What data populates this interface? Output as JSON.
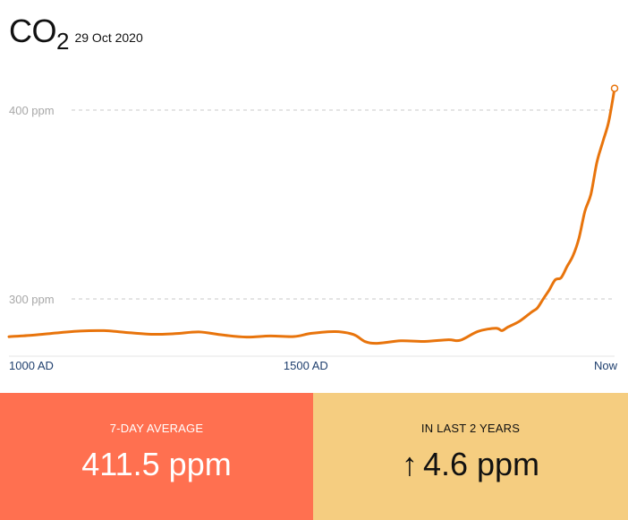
{
  "header": {
    "title_main": "CO",
    "title_sub": "2",
    "date": "29 Oct 2020"
  },
  "colors": {
    "line": "#e8740c",
    "tile_left_bg": "#ff7050",
    "tile_right_bg": "#f5cd80",
    "axis_text": "#1f3f6e",
    "gridline": "#c8c8c8",
    "y_tick_text": "#a8a8a8"
  },
  "chart_data": {
    "type": "line",
    "title": "",
    "xlabel": "",
    "ylabel": "",
    "x_tick_labels": [
      "1000 AD",
      "1500 AD",
      "Now"
    ],
    "x_ticks": [
      1000,
      1500,
      2020
    ],
    "y_tick_labels": [
      "400 ppm",
      "300 ppm"
    ],
    "y_ticks": [
      400,
      300
    ],
    "xlim": [
      1000,
      2020
    ],
    "ylim": [
      270,
      425
    ],
    "grid": "horizontal dashed at labeled y ticks",
    "end_marker": "hollow circle",
    "series": [
      {
        "x": [
          1000,
          1040,
          1080,
          1120,
          1160,
          1200,
          1240,
          1280,
          1320,
          1360,
          1400,
          1440,
          1480,
          1510,
          1550,
          1580,
          1600,
          1620,
          1660,
          1700,
          1740,
          1760,
          1790,
          1820,
          1830,
          1840,
          1860,
          1880,
          1890,
          1900,
          1910,
          1920,
          1930,
          1940,
          1950,
          1960,
          1970,
          1980,
          1990,
          2000,
          2010,
          2020
        ],
        "values": [
          280.0,
          280.8,
          282.0,
          283.0,
          283.2,
          282.2,
          281.3,
          281.6,
          282.5,
          280.9,
          279.8,
          280.4,
          280.1,
          281.8,
          282.7,
          281.2,
          277.4,
          276.5,
          277.8,
          277.5,
          278.4,
          278.1,
          282.8,
          284.5,
          283.2,
          285.0,
          288.2,
          293.0,
          295.2,
          300.1,
          304.8,
          310.1,
          311.3,
          317.2,
          322.9,
          332.2,
          346.4,
          355.3,
          372.1,
          383.0,
          393.8,
          411.5
        ]
      }
    ]
  },
  "stats": {
    "left": {
      "label": "7-DAY AVERAGE",
      "value": "411.5 ppm"
    },
    "right": {
      "label": "IN LAST 2 YEARS",
      "arrow": "↑",
      "value": "4.6 ppm"
    }
  }
}
